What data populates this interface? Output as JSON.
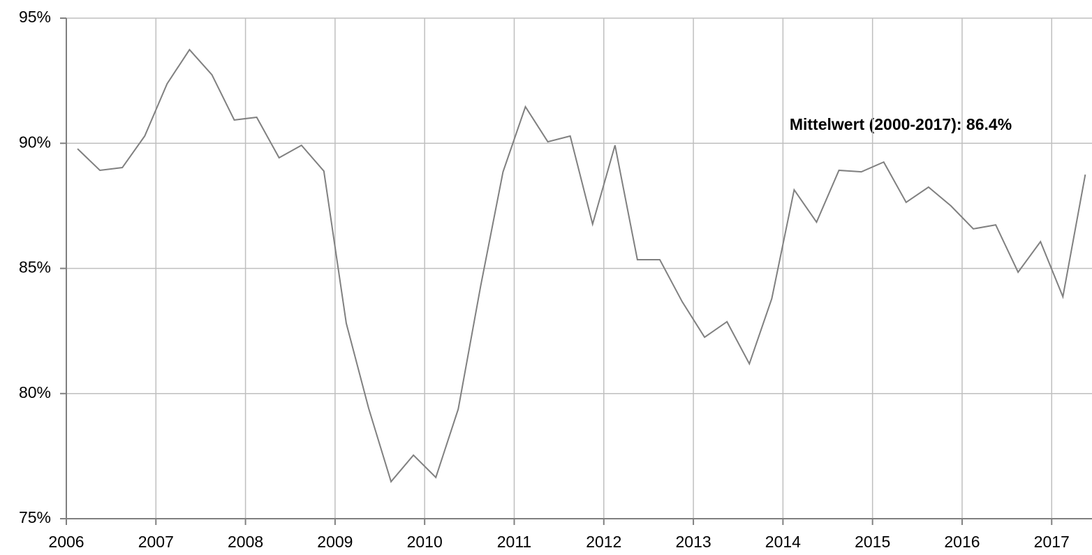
{
  "chart_data": {
    "type": "line",
    "annotation": "Mittelwert (2000-2017): 86.4%",
    "x": [
      2006.125,
      2006.375,
      2006.625,
      2006.875,
      2007.125,
      2007.375,
      2007.625,
      2007.875,
      2008.125,
      2008.375,
      2008.625,
      2008.875,
      2009.125,
      2009.375,
      2009.625,
      2009.875,
      2010.125,
      2010.375,
      2010.625,
      2010.875,
      2011.125,
      2011.375,
      2011.625,
      2011.875,
      2012.125,
      2012.375,
      2012.625,
      2012.875,
      2013.125,
      2013.375,
      2013.625,
      2013.875,
      2014.125,
      2014.375,
      2014.625,
      2014.875,
      2015.125,
      2015.375,
      2015.625,
      2015.875,
      2016.125,
      2016.375,
      2016.625,
      2016.875,
      2017.125,
      2017.375
    ],
    "values": [
      89.78,
      88.92,
      89.03,
      90.29,
      92.38,
      93.74,
      92.74,
      90.93,
      91.04,
      89.42,
      89.92,
      88.89,
      82.81,
      79.41,
      76.48,
      77.54,
      76.65,
      79.38,
      84.29,
      88.86,
      91.46,
      90.06,
      90.29,
      86.77,
      89.92,
      85.35,
      85.35,
      83.67,
      82.25,
      82.87,
      81.19,
      83.79,
      88.14,
      86.85,
      88.92,
      88.86,
      89.25,
      87.64,
      88.25,
      87.5,
      86.58,
      86.74,
      84.85,
      86.07,
      83.87,
      88.75
    ],
    "color": "#808080",
    "xlim": [
      2006,
      2017.45
    ],
    "xticks": [
      2006,
      2007,
      2008,
      2009,
      2010,
      2011,
      2012,
      2013,
      2014,
      2015,
      2016,
      2017
    ],
    "ylim": [
      75,
      95
    ],
    "yticks": [
      {
        "value": 75,
        "label": "75%"
      },
      {
        "value": 80,
        "label": "80%"
      },
      {
        "value": 85,
        "label": "85%"
      },
      {
        "value": 90,
        "label": "90%"
      },
      {
        "value": 95,
        "label": "95%"
      }
    ],
    "grid": true
  }
}
